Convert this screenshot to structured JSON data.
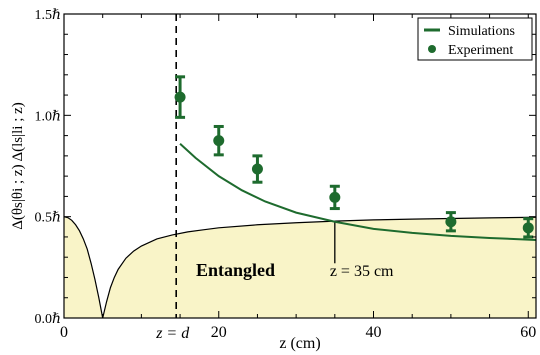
{
  "chart_data": {
    "type": "line",
    "xlabel": "z (cm)",
    "ylabel": "Δ(θs|θi ; z) Δ(ls|li ; z)",
    "xlim": [
      0,
      61
    ],
    "ylim": [
      0,
      1.5
    ],
    "x_ticks": [
      0,
      20,
      40,
      60
    ],
    "x_tick_labels": [
      "0",
      "20",
      "40",
      "60"
    ],
    "y_ticks": [
      0,
      0.5,
      1.0,
      1.5
    ],
    "y_tick_labels": [
      "0.0ℏ",
      "0.5ℏ",
      "1.0ℏ",
      "1.5ℏ"
    ],
    "grid": false,
    "legend_position": "top-right",
    "legend": [
      {
        "label": "Simulations",
        "marker": "line"
      },
      {
        "label": "Experiment",
        "marker": "dot"
      }
    ],
    "bound": {
      "description": "entanglement bound (shaded region below)",
      "x": [
        0,
        0.5,
        1,
        1.5,
        2,
        2.5,
        3,
        3.5,
        4,
        4.5,
        5,
        5.5,
        6,
        6.5,
        7,
        8,
        9,
        10,
        12,
        14,
        16,
        18,
        20,
        25,
        30,
        35,
        40,
        45,
        50,
        55,
        61
      ],
      "y": [
        0.5,
        0.495,
        0.482,
        0.46,
        0.43,
        0.39,
        0.34,
        0.27,
        0.19,
        0.1,
        0.0,
        0.08,
        0.15,
        0.2,
        0.24,
        0.295,
        0.33,
        0.355,
        0.39,
        0.41,
        0.425,
        0.435,
        0.445,
        0.46,
        0.47,
        0.478,
        0.484,
        0.488,
        0.491,
        0.494,
        0.497
      ],
      "region_label": "Entangled"
    },
    "series": [
      {
        "name": "Simulations",
        "type": "line",
        "color": "#1e6b2e",
        "x": [
          15,
          17,
          20,
          23,
          26,
          30,
          35,
          40,
          45,
          50,
          55,
          61
        ],
        "y": [
          0.86,
          0.79,
          0.7,
          0.63,
          0.575,
          0.52,
          0.475,
          0.44,
          0.42,
          0.405,
          0.395,
          0.385
        ]
      },
      {
        "name": "Experiment",
        "type": "scatter",
        "color": "#1e6b2e",
        "x": [
          15,
          20,
          25,
          35,
          50,
          60
        ],
        "y": [
          1.09,
          0.875,
          0.735,
          0.595,
          0.475,
          0.445
        ],
        "yerr": [
          0.1,
          0.07,
          0.065,
          0.055,
          0.045,
          0.045
        ]
      }
    ],
    "annotations": [
      {
        "text": "z = d",
        "x": 14.5
      },
      {
        "text": "z = 35 cm",
        "x": 35
      }
    ]
  },
  "colors": {
    "accent": "#1e6b2e",
    "fill": "#f9f4c8",
    "axis": "#000000"
  }
}
